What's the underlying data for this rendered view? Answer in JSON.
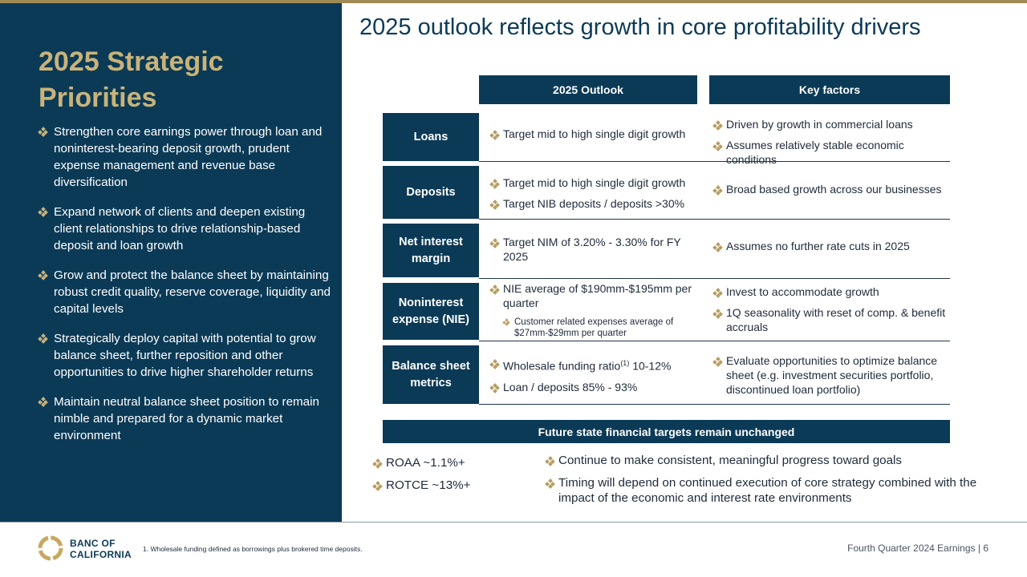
{
  "colors": {
    "navy": "#0b3a56",
    "gold": "#c9b37a",
    "accent_bar": "#a08a55"
  },
  "left_panel": {
    "title": "2025 Strategic Priorities",
    "priorities": [
      "Strengthen core earnings power through loan and noninterest-bearing deposit growth, prudent expense management and revenue base diversification",
      "Expand network of clients and deepen existing client relationships to drive relationship-based deposit and loan growth",
      "Grow and protect the balance sheet by maintaining robust credit quality, reserve coverage, liquidity and capital levels",
      "Strategically deploy capital with potential to grow balance sheet, further reposition and other opportunities to drive higher shareholder returns",
      "Maintain neutral balance sheet position to remain nimble and prepared for a dynamic market environment"
    ]
  },
  "main": {
    "title": "2025 outlook reflects growth in core profitability drivers",
    "table": {
      "col_outlook": "2025 Outlook",
      "col_factors": "Key factors",
      "rows": [
        {
          "label": "Loans",
          "outlook": [
            "Target mid to high single digit growth"
          ],
          "factors": [
            "Driven by growth in commercial loans",
            "Assumes relatively stable economic conditions"
          ]
        },
        {
          "label": "Deposits",
          "outlook": [
            "Target mid to high single digit growth",
            "Target NIB deposits / deposits >30%"
          ],
          "factors": [
            "Broad based growth across our businesses"
          ]
        },
        {
          "label": "Net interest margin",
          "outlook": [
            "Target NIM of 3.20% - 3.30% for FY 2025"
          ],
          "factors": [
            "Assumes no further rate cuts in 2025"
          ]
        },
        {
          "label": "Noninterest expense (NIE)",
          "outlook": [
            "NIE average of $190mm-$195mm per quarter"
          ],
          "outlook_sub": "Customer related expenses average of $27mm-$29mm per quarter",
          "factors": [
            "Invest to accommodate growth",
            "1Q seasonality with reset of comp. & benefit accruals"
          ]
        },
        {
          "label": "Balance sheet metrics",
          "outlook_wholesale_pre": "Wholesale funding ratio",
          "outlook_wholesale_sup": "(1)",
          "outlook_wholesale_post": " 10-12%",
          "outlook": [
            "Loan / deposits 85% - 93%"
          ],
          "factors": [
            "Evaluate opportunities to optimize balance sheet (e.g. investment securities portfolio, discontinued loan portfolio)"
          ]
        }
      ]
    },
    "future": {
      "header": "Future state financial targets remain unchanged",
      "targets": [
        "ROAA ~1.1%+",
        "ROTCE ~13%+"
      ],
      "notes": [
        "Continue to make consistent, meaningful progress toward goals",
        "Timing will depend on continued execution of core strategy combined with the impact of the economic and interest rate environments"
      ]
    }
  },
  "footer": {
    "brand_line1": "BANC OF",
    "brand_line2": "CALIFORNIA",
    "footnote": "1.  Wholesale funding defined as borrowings plus brokered time deposits.",
    "report": "Fourth Quarter 2024 Earnings  |  6"
  }
}
